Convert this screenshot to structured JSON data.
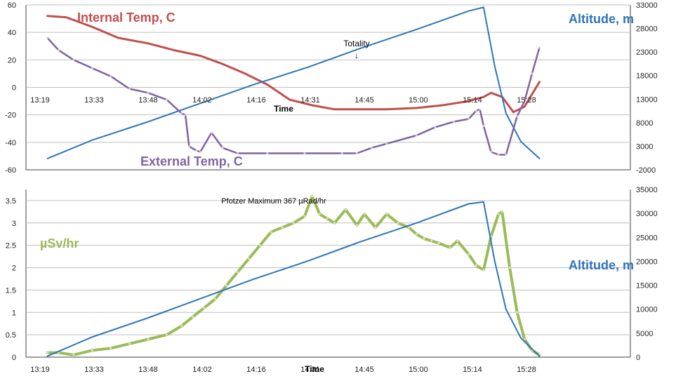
{
  "chart_data": [
    {
      "type": "line",
      "xlabel": "Time",
      "x_tick_labels": [
        "13:19",
        "13:33",
        "13:48",
        "14:02",
        "14:16",
        "14:31",
        "14:45",
        "15:00",
        "15:14",
        "15:28"
      ],
      "ylim": [
        -60,
        60
      ],
      "y_ticks": [
        60,
        40,
        20,
        0,
        -20,
        -40,
        -60
      ],
      "y2lim": [
        -2000,
        33000
      ],
      "y2_ticks": [
        33000,
        28000,
        23000,
        18000,
        13000,
        8000,
        3000,
        -2000
      ],
      "annotations": [
        {
          "text": "Totality",
          "arrow": "↓",
          "x": "14:33",
          "y": 15
        }
      ],
      "grid": true,
      "series": [
        {
          "name": "Internal Temp, C",
          "color": "#c0504d",
          "axis": "left",
          "x": [
            "13:21",
            "13:26",
            "13:33",
            "13:40",
            "13:48",
            "13:55",
            "14:02",
            "14:08",
            "14:14",
            "14:20",
            "14:26",
            "14:32",
            "14:38",
            "14:45",
            "14:52",
            "15:00",
            "15:07",
            "15:14",
            "15:18",
            "15:20",
            "15:23",
            "15:26",
            "15:29",
            "15:33"
          ],
          "y": [
            52,
            51,
            44,
            36,
            32,
            27,
            23,
            17,
            10,
            2,
            -9,
            -13,
            -16,
            -16,
            -16,
            -15,
            -13,
            -10,
            -7,
            -4,
            -7,
            -18,
            -14,
            4
          ]
        },
        {
          "name": "Altitude, m",
          "color": "#2e75b6",
          "axis": "right",
          "x": [
            "13:21",
            "13:33",
            "13:48",
            "14:02",
            "14:16",
            "14:31",
            "14:45",
            "15:00",
            "15:14",
            "15:18",
            "15:21",
            "15:24",
            "15:28",
            "15:33"
          ],
          "y": [
            400,
            4300,
            8200,
            12100,
            16000,
            19800,
            23800,
            27800,
            31700,
            32500,
            20000,
            10000,
            4000,
            400
          ]
        },
        {
          "name": "External Temp, C",
          "color": "#8064a2",
          "axis": "left",
          "x": [
            "13:21",
            "13:24",
            "13:28",
            "13:33",
            "13:38",
            "13:43",
            "13:48",
            "13:53",
            "13:57",
            "13:58",
            "13:59",
            "14:01",
            "14:02",
            "14:05",
            "14:08",
            "14:12",
            "14:20",
            "14:30",
            "14:40",
            "14:44",
            "14:48",
            "14:52",
            "15:00",
            "15:05",
            "15:10",
            "15:14",
            "15:16",
            "15:17",
            "15:18",
            "15:20",
            "15:22",
            "15:24",
            "15:27",
            "15:29",
            "15:31",
            "15:33"
          ],
          "y": [
            36,
            27,
            20,
            14,
            8,
            -1,
            -4,
            -9,
            -19,
            -20,
            -43,
            -46,
            -47,
            -33,
            -44,
            -48,
            -48,
            -48,
            -48,
            -48,
            -44,
            -41,
            -35,
            -29,
            -25,
            -23,
            -17,
            -16,
            -28,
            -47,
            -49,
            -49,
            -21,
            -10,
            10,
            29
          ]
        }
      ]
    },
    {
      "type": "line",
      "title": "Pfotzer Maximum 367 µRad/hr",
      "xlabel": "Time",
      "x_tick_labels": [
        "13:19",
        "13:33",
        "13:48",
        "14:02",
        "14:16",
        "14:31",
        "14:45",
        "15:00",
        "15:14",
        "15:28"
      ],
      "ylim": [
        0,
        3.75
      ],
      "y_ticks": [
        0,
        0.5,
        1,
        1.5,
        2,
        2.5,
        3,
        3.5
      ],
      "y2lim": [
        0,
        35000
      ],
      "y2_ticks": [
        0,
        5000,
        10000,
        15000,
        20000,
        25000,
        30000,
        35000
      ],
      "grid": true,
      "series": [
        {
          "name": "µSv/hr",
          "color": "#9bbb59",
          "axis": "left",
          "x": [
            "13:21",
            "13:24",
            "13:28",
            "13:33",
            "13:38",
            "13:43",
            "13:48",
            "13:53",
            "13:57",
            "14:00",
            "14:03",
            "14:06",
            "14:09",
            "14:12",
            "14:15",
            "14:18",
            "14:21",
            "14:24",
            "14:27",
            "14:30",
            "14:32",
            "14:34",
            "14:36",
            "14:38",
            "14:41",
            "14:44",
            "14:46",
            "14:49",
            "14:52",
            "14:55",
            "14:58",
            "15:00",
            "15:02",
            "15:04",
            "15:06",
            "15:09",
            "15:11",
            "15:14",
            "15:16",
            "15:18",
            "15:20",
            "15:22",
            "15:23",
            "15:25",
            "15:27",
            "15:29",
            "15:31",
            "15:33"
          ],
          "y": [
            0.1,
            0.1,
            0.05,
            0.15,
            0.2,
            0.3,
            0.4,
            0.5,
            0.7,
            0.9,
            1.1,
            1.3,
            1.6,
            1.9,
            2.2,
            2.5,
            2.8,
            2.9,
            3.0,
            3.15,
            3.6,
            3.2,
            3.1,
            3.0,
            3.3,
            2.95,
            3.2,
            2.9,
            3.2,
            3.0,
            2.9,
            2.75,
            2.65,
            2.6,
            2.55,
            2.45,
            2.6,
            2.3,
            2.05,
            1.95,
            2.7,
            3.2,
            3.25,
            2.0,
            1.0,
            0.4,
            0.15,
            0.05
          ]
        },
        {
          "name": "Altitude, m",
          "color": "#2e75b6",
          "axis": "right",
          "x": [
            "13:21",
            "13:33",
            "13:48",
            "14:02",
            "14:16",
            "14:31",
            "14:45",
            "15:00",
            "15:14",
            "15:18",
            "15:21",
            "15:24",
            "15:28",
            "15:33"
          ],
          "y": [
            200,
            4200,
            8200,
            12200,
            16200,
            20100,
            24100,
            28000,
            32000,
            32400,
            20000,
            10000,
            4000,
            200
          ]
        }
      ]
    }
  ]
}
